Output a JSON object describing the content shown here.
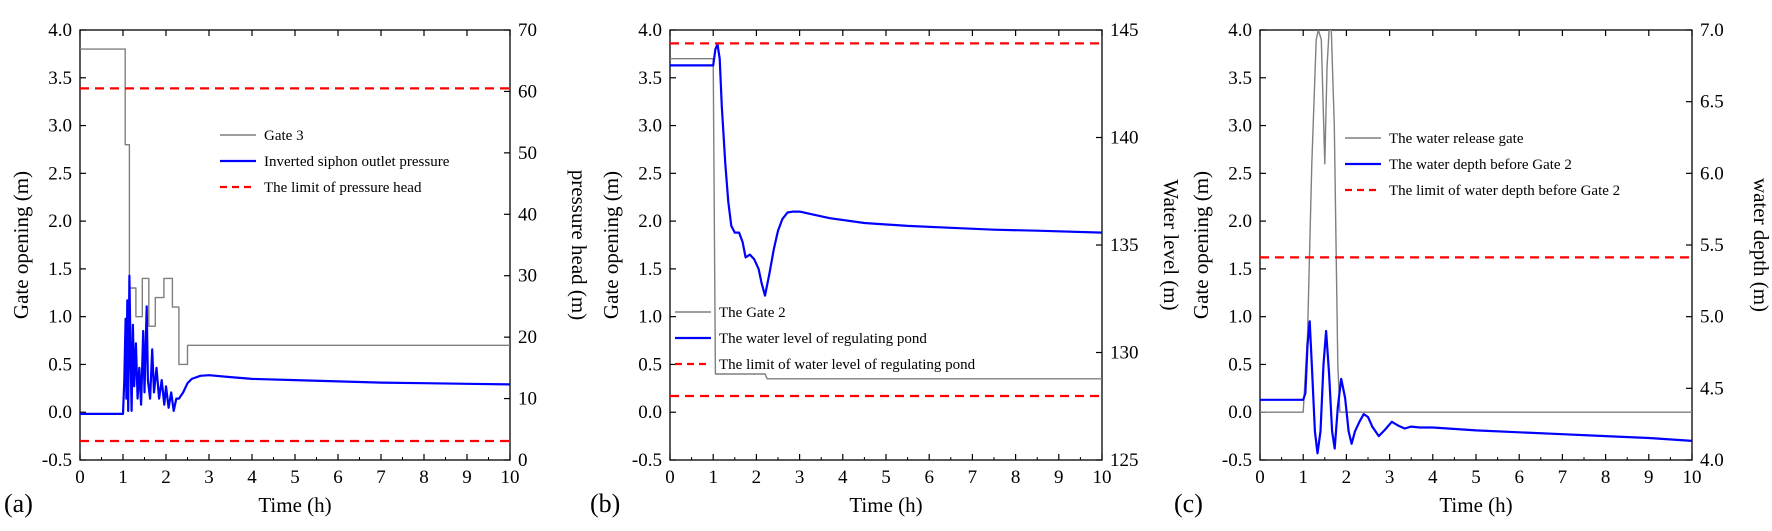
{
  "colors": {
    "gate": "#7f7f7f",
    "series": "#0000ff",
    "limit": "#ff0000",
    "axis": "#000000"
  },
  "chart_data": [
    {
      "id": "a",
      "type": "line",
      "panel_label": "(a)",
      "xlabel": "Time (h)",
      "ylabel": "Gate opening (m)",
      "y2label": "pressure head (m)",
      "xlim": [
        0,
        10
      ],
      "ylim": [
        -0.5,
        4.0
      ],
      "y2lim": [
        0,
        70
      ],
      "xticks": [
        "0",
        "1",
        "2",
        "3",
        "4",
        "5",
        "6",
        "7",
        "8",
        "9",
        "10"
      ],
      "yticks": [
        "-0.5",
        "0.0",
        "0.5",
        "1.0",
        "1.5",
        "2.0",
        "2.5",
        "3.0",
        "3.5",
        "4.0"
      ],
      "y2ticks": [
        "0",
        "10",
        "20",
        "30",
        "40",
        "50",
        "60",
        "70"
      ],
      "legend": [
        "Gate 3",
        "Inverted siphon outlet pressure",
        "The limit of pressure head"
      ],
      "series": [
        {
          "name": "Gate 3",
          "axis": "left",
          "style": "gate",
          "points": [
            [
              0,
              3.8
            ],
            [
              1.05,
              3.8
            ],
            [
              1.05,
              2.8
            ],
            [
              1.15,
              2.8
            ],
            [
              1.15,
              1.3
            ],
            [
              1.3,
              1.3
            ],
            [
              1.3,
              1.0
            ],
            [
              1.45,
              1.0
            ],
            [
              1.45,
              1.4
            ],
            [
              1.6,
              1.4
            ],
            [
              1.6,
              0.9
            ],
            [
              1.75,
              0.9
            ],
            [
              1.75,
              1.2
            ],
            [
              1.95,
              1.2
            ],
            [
              1.95,
              1.4
            ],
            [
              2.15,
              1.4
            ],
            [
              2.15,
              1.1
            ],
            [
              2.3,
              1.1
            ],
            [
              2.3,
              0.5
            ],
            [
              2.5,
              0.5
            ],
            [
              2.5,
              0.7
            ],
            [
              10,
              0.7
            ]
          ]
        },
        {
          "name": "Inverted siphon outlet pressure",
          "axis": "right",
          "style": "series",
          "points": [
            [
              0,
              7.5
            ],
            [
              1.0,
              7.5
            ],
            [
              1.03,
              13
            ],
            [
              1.06,
              23
            ],
            [
              1.08,
              10
            ],
            [
              1.1,
              26
            ],
            [
              1.12,
              8
            ],
            [
              1.15,
              30
            ],
            [
              1.18,
              16
            ],
            [
              1.2,
              8
            ],
            [
              1.23,
              22
            ],
            [
              1.26,
              12
            ],
            [
              1.3,
              19
            ],
            [
              1.34,
              10
            ],
            [
              1.38,
              15
            ],
            [
              1.42,
              9
            ],
            [
              1.47,
              21
            ],
            [
              1.5,
              11
            ],
            [
              1.55,
              25
            ],
            [
              1.58,
              13
            ],
            [
              1.63,
              10
            ],
            [
              1.68,
              18
            ],
            [
              1.72,
              11
            ],
            [
              1.78,
              15
            ],
            [
              1.84,
              10
            ],
            [
              1.9,
              13
            ],
            [
              1.96,
              9
            ],
            [
              2.0,
              12
            ],
            [
              2.06,
              8.5
            ],
            [
              2.12,
              11
            ],
            [
              2.18,
              8
            ],
            [
              2.24,
              10
            ],
            [
              2.3,
              10
            ],
            [
              2.4,
              11
            ],
            [
              2.5,
              12.5
            ],
            [
              2.6,
              13.2
            ],
            [
              2.8,
              13.7
            ],
            [
              3.0,
              13.8
            ],
            [
              3.5,
              13.5
            ],
            [
              4,
              13.2
            ],
            [
              5,
              13
            ],
            [
              6,
              12.8
            ],
            [
              7,
              12.6
            ],
            [
              8,
              12.5
            ],
            [
              9,
              12.4
            ],
            [
              10,
              12.3
            ]
          ]
        },
        {
          "name": "The limit of pressure head",
          "axis": "right",
          "style": "limit",
          "points": [
            [
              0,
              60.5
            ],
            [
              10,
              60.5
            ]
          ]
        },
        {
          "name": "The limit of pressure head (lower)",
          "axis": "right",
          "style": "limit",
          "points": [
            [
              0,
              3.1
            ],
            [
              10,
              3.1
            ]
          ]
        }
      ]
    },
    {
      "id": "b",
      "type": "line",
      "panel_label": "(b)",
      "xlabel": "Time (h)",
      "ylabel": "Gate opening (m)",
      "y2label": "Water level (m)",
      "xlim": [
        0,
        10
      ],
      "ylim": [
        -0.5,
        4.0
      ],
      "y2lim": [
        125,
        145
      ],
      "xticks": [
        "0",
        "1",
        "2",
        "3",
        "4",
        "5",
        "6",
        "7",
        "8",
        "9",
        "10"
      ],
      "yticks": [
        "-0.5",
        "0.0",
        "0.5",
        "1.0",
        "1.5",
        "2.0",
        "2.5",
        "3.0",
        "3.5",
        "4.0"
      ],
      "y2ticks": [
        "125",
        "130",
        "135",
        "140",
        "145"
      ],
      "legend": [
        "The Gate 2",
        "The water level of regulating pond",
        "The limit of water level of regulating pond"
      ],
      "series": [
        {
          "name": "The Gate 2",
          "axis": "left",
          "style": "gate",
          "points": [
            [
              0,
              3.7
            ],
            [
              1.0,
              3.7
            ],
            [
              1.05,
              0.4
            ],
            [
              2.2,
              0.4
            ],
            [
              2.25,
              0.35
            ],
            [
              10,
              0.35
            ]
          ]
        },
        {
          "name": "The water level of regulating pond",
          "axis": "left",
          "style": "series",
          "points": [
            [
              0,
              3.63
            ],
            [
              1.0,
              3.63
            ],
            [
              1.05,
              3.8
            ],
            [
              1.1,
              3.85
            ],
            [
              1.15,
              3.7
            ],
            [
              1.2,
              3.2
            ],
            [
              1.28,
              2.6
            ],
            [
              1.35,
              2.2
            ],
            [
              1.42,
              1.95
            ],
            [
              1.5,
              1.88
            ],
            [
              1.6,
              1.88
            ],
            [
              1.68,
              1.78
            ],
            [
              1.75,
              1.62
            ],
            [
              1.85,
              1.65
            ],
            [
              1.95,
              1.6
            ],
            [
              2.05,
              1.5
            ],
            [
              2.12,
              1.35
            ],
            [
              2.2,
              1.22
            ],
            [
              2.3,
              1.45
            ],
            [
              2.4,
              1.7
            ],
            [
              2.5,
              1.9
            ],
            [
              2.6,
              2.02
            ],
            [
              2.72,
              2.09
            ],
            [
              2.85,
              2.1
            ],
            [
              3.0,
              2.1
            ],
            [
              3.3,
              2.07
            ],
            [
              3.7,
              2.03
            ],
            [
              4.5,
              1.98
            ],
            [
              5.5,
              1.95
            ],
            [
              6.5,
              1.93
            ],
            [
              7.5,
              1.91
            ],
            [
              8.5,
              1.9
            ],
            [
              10,
              1.88
            ]
          ]
        },
        {
          "name": "The limit of water level of regulating pond",
          "axis": "left",
          "style": "limit",
          "points": [
            [
              0,
              3.86
            ],
            [
              10,
              3.86
            ]
          ]
        },
        {
          "name": "The limit of water level of regulating pond (lower)",
          "axis": "left",
          "style": "limit",
          "points": [
            [
              0,
              0.17
            ],
            [
              10,
              0.17
            ]
          ]
        }
      ]
    },
    {
      "id": "c",
      "type": "line",
      "panel_label": "(c)",
      "xlabel": "Time (h)",
      "ylabel": "Gate opening (m)",
      "y2label": "water depth (m)",
      "xlim": [
        0,
        10
      ],
      "ylim": [
        -0.5,
        4.0
      ],
      "y2lim": [
        4.0,
        7.0
      ],
      "xticks": [
        "0",
        "1",
        "2",
        "3",
        "4",
        "5",
        "6",
        "7",
        "8",
        "9",
        "10"
      ],
      "yticks": [
        "-0.5",
        "0.0",
        "0.5",
        "1.0",
        "1.5",
        "2.0",
        "2.5",
        "3.0",
        "3.5",
        "4.0"
      ],
      "y2ticks": [
        "4.0",
        "4.5",
        "5.0",
        "5.5",
        "6.0",
        "6.5",
        "7.0"
      ],
      "legend": [
        "The water release gate",
        "The water depth before Gate 2",
        "The limit of water depth before Gate 2"
      ],
      "series": [
        {
          "name": "The water release gate",
          "axis": "left",
          "style": "gate",
          "points": [
            [
              0,
              0
            ],
            [
              1.0,
              0
            ],
            [
              1.1,
              0.8
            ],
            [
              1.2,
              2.6
            ],
            [
              1.3,
              3.9
            ],
            [
              1.35,
              4.0
            ],
            [
              1.42,
              3.9
            ],
            [
              1.5,
              2.6
            ],
            [
              1.55,
              3.6
            ],
            [
              1.6,
              4.0
            ],
            [
              1.65,
              4.0
            ],
            [
              1.72,
              3.0
            ],
            [
              1.8,
              0.5
            ],
            [
              1.85,
              0
            ],
            [
              10,
              0
            ]
          ]
        },
        {
          "name": "The water depth before Gate 2",
          "axis": "left",
          "style": "series",
          "points": [
            [
              0,
              0.13
            ],
            [
              1.0,
              0.13
            ],
            [
              1.05,
              0.2
            ],
            [
              1.1,
              0.7
            ],
            [
              1.15,
              0.95
            ],
            [
              1.2,
              0.5
            ],
            [
              1.27,
              -0.2
            ],
            [
              1.33,
              -0.43
            ],
            [
              1.4,
              -0.2
            ],
            [
              1.47,
              0.5
            ],
            [
              1.53,
              0.85
            ],
            [
              1.6,
              0.4
            ],
            [
              1.67,
              -0.2
            ],
            [
              1.73,
              -0.38
            ],
            [
              1.8,
              0.05
            ],
            [
              1.88,
              0.35
            ],
            [
              1.97,
              0.15
            ],
            [
              2.05,
              -0.2
            ],
            [
              2.12,
              -0.33
            ],
            [
              2.2,
              -0.2
            ],
            [
              2.3,
              -0.1
            ],
            [
              2.4,
              -0.02
            ],
            [
              2.5,
              -0.05
            ],
            [
              2.6,
              -0.15
            ],
            [
              2.75,
              -0.25
            ],
            [
              2.9,
              -0.18
            ],
            [
              3.05,
              -0.1
            ],
            [
              3.2,
              -0.14
            ],
            [
              3.35,
              -0.17
            ],
            [
              3.5,
              -0.15
            ],
            [
              3.7,
              -0.16
            ],
            [
              4,
              -0.16
            ],
            [
              5,
              -0.19
            ],
            [
              6,
              -0.21
            ],
            [
              7,
              -0.23
            ],
            [
              8,
              -0.25
            ],
            [
              9,
              -0.27
            ],
            [
              10,
              -0.3
            ]
          ]
        },
        {
          "name": "The limit of water depth before Gate 2",
          "axis": "left",
          "style": "limit",
          "points": [
            [
              0,
              1.62
            ],
            [
              10,
              1.62
            ]
          ]
        }
      ]
    }
  ]
}
